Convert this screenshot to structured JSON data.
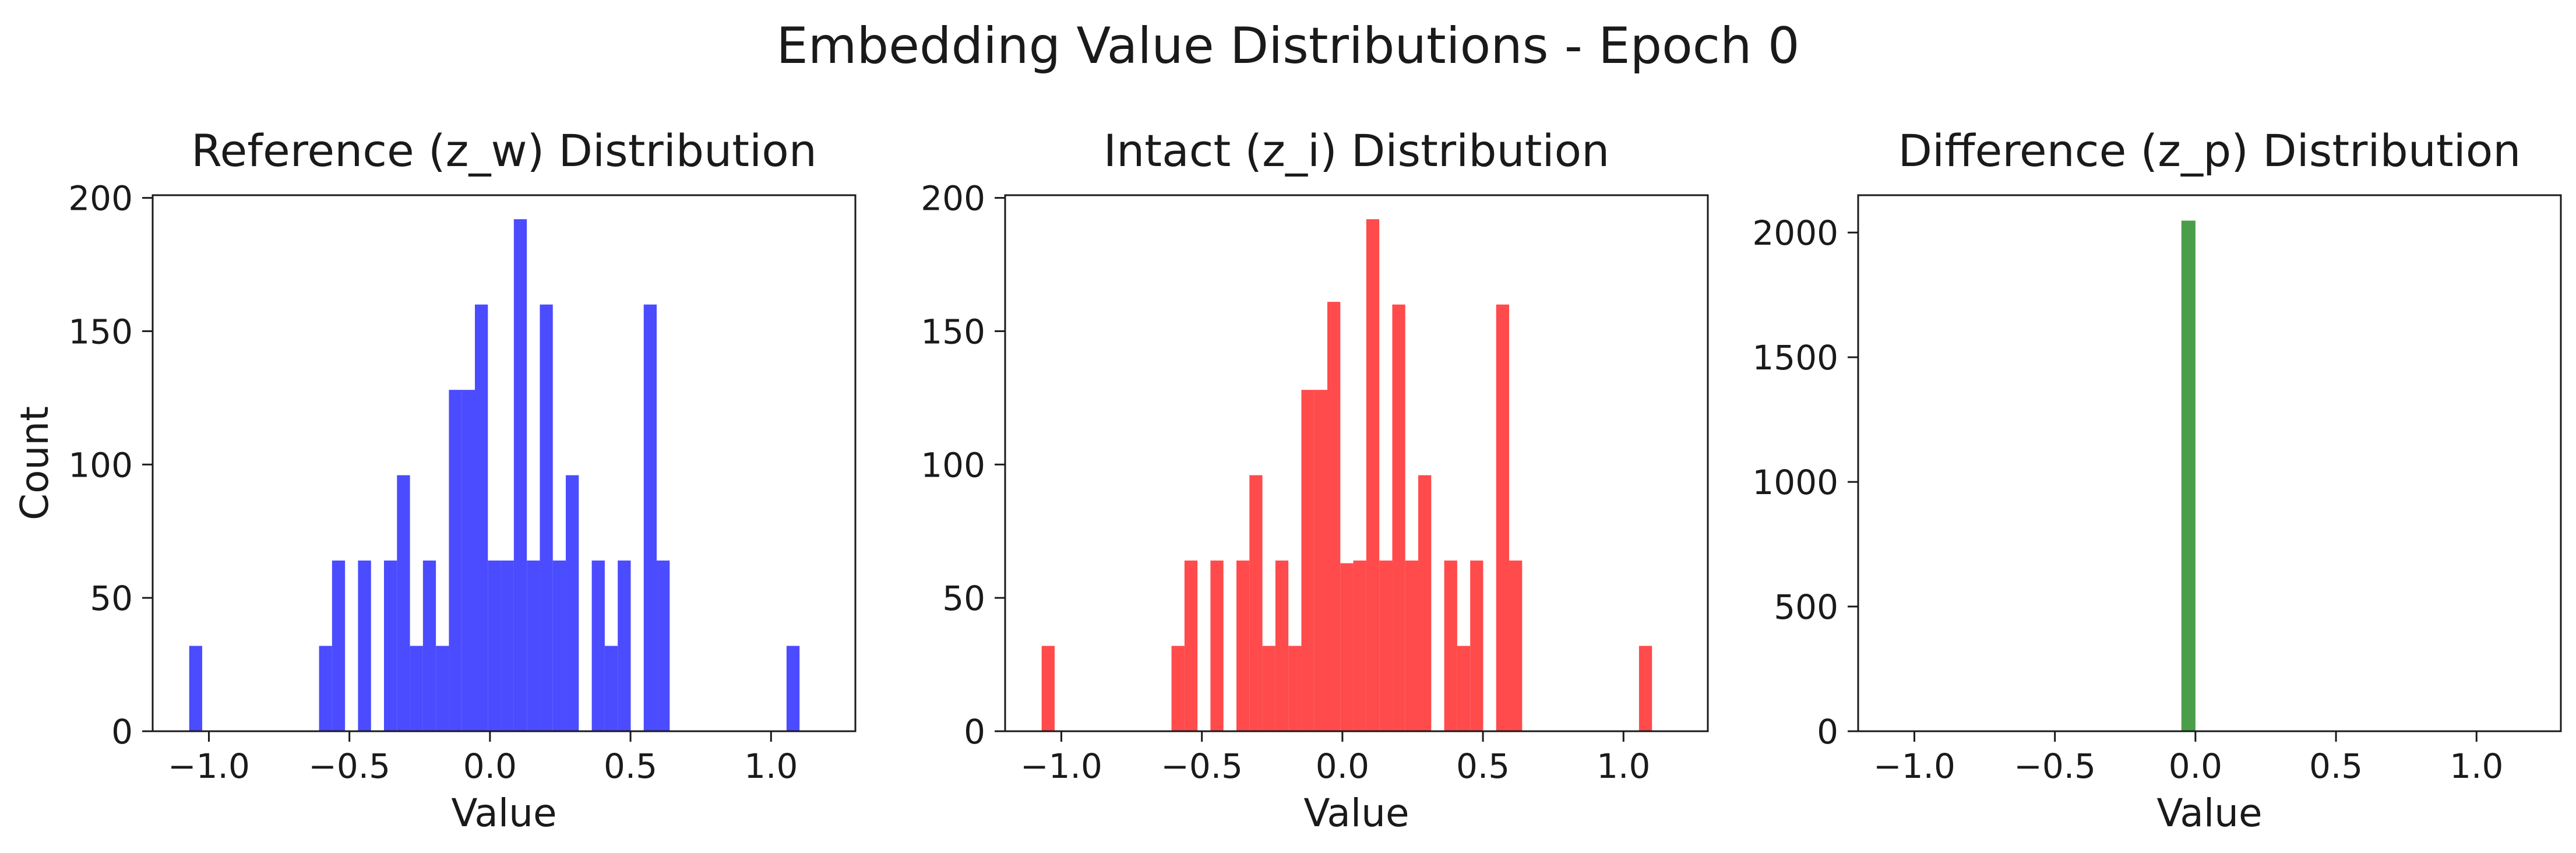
{
  "figure": {
    "title": "Embedding Value Distributions - Epoch 0"
  },
  "chart_data": [
    {
      "type": "bar",
      "title": "Reference (z_w) Distribution",
      "xlabel": "Value",
      "ylabel": "Count",
      "xlim": [
        -1.2,
        1.3
      ],
      "ylim": [
        0,
        201
      ],
      "xticks": [
        "-1.0",
        "-0.5",
        "0.0",
        "0.5",
        "1.0"
      ],
      "yticks": [
        "0",
        "50",
        "100",
        "150",
        "200"
      ],
      "color": "#4b4bff",
      "bin_start": -1.07,
      "bin_width": 0.0462,
      "values": [
        32,
        0,
        0,
        0,
        0,
        0,
        0,
        0,
        0,
        0,
        32,
        64,
        0,
        64,
        0,
        64,
        96,
        32,
        64,
        32,
        128,
        128,
        160,
        64,
        64,
        192,
        64,
        160,
        64,
        96,
        0,
        64,
        32,
        64,
        0,
        160,
        64,
        0,
        0,
        0,
        0,
        0,
        0,
        0,
        0,
        0,
        32
      ]
    },
    {
      "type": "bar",
      "title": "Intact (z_i) Distribution",
      "xlabel": "Value",
      "ylabel": "",
      "xlim": [
        -1.2,
        1.3
      ],
      "ylim": [
        0,
        201
      ],
      "xticks": [
        "-1.0",
        "-0.5",
        "0.0",
        "0.5",
        "1.0"
      ],
      "yticks": [
        "0",
        "50",
        "100",
        "150",
        "200"
      ],
      "color": "#ff4b4b",
      "bin_start": -1.07,
      "bin_width": 0.0462,
      "values": [
        32,
        0,
        0,
        0,
        0,
        0,
        0,
        0,
        0,
        0,
        32,
        64,
        0,
        64,
        0,
        64,
        96,
        32,
        64,
        32,
        128,
        128,
        161,
        63,
        64,
        192,
        64,
        160,
        64,
        96,
        0,
        64,
        32,
        64,
        0,
        160,
        64,
        0,
        0,
        0,
        0,
        0,
        0,
        0,
        0,
        0,
        32
      ]
    },
    {
      "type": "bar",
      "title": "Difference (z_p) Distribution",
      "xlabel": "Value",
      "ylabel": "",
      "xlim": [
        -1.2,
        1.3
      ],
      "ylim": [
        0,
        2150
      ],
      "xticks": [
        "-1.0",
        "-0.5",
        "0.0",
        "0.5",
        "1.0"
      ],
      "yticks": [
        "0",
        "500",
        "1000",
        "1500",
        "2000"
      ],
      "color": "#4a9e4a",
      "bin_start": -0.05,
      "bin_width": 0.05,
      "values": [
        2048
      ]
    }
  ]
}
